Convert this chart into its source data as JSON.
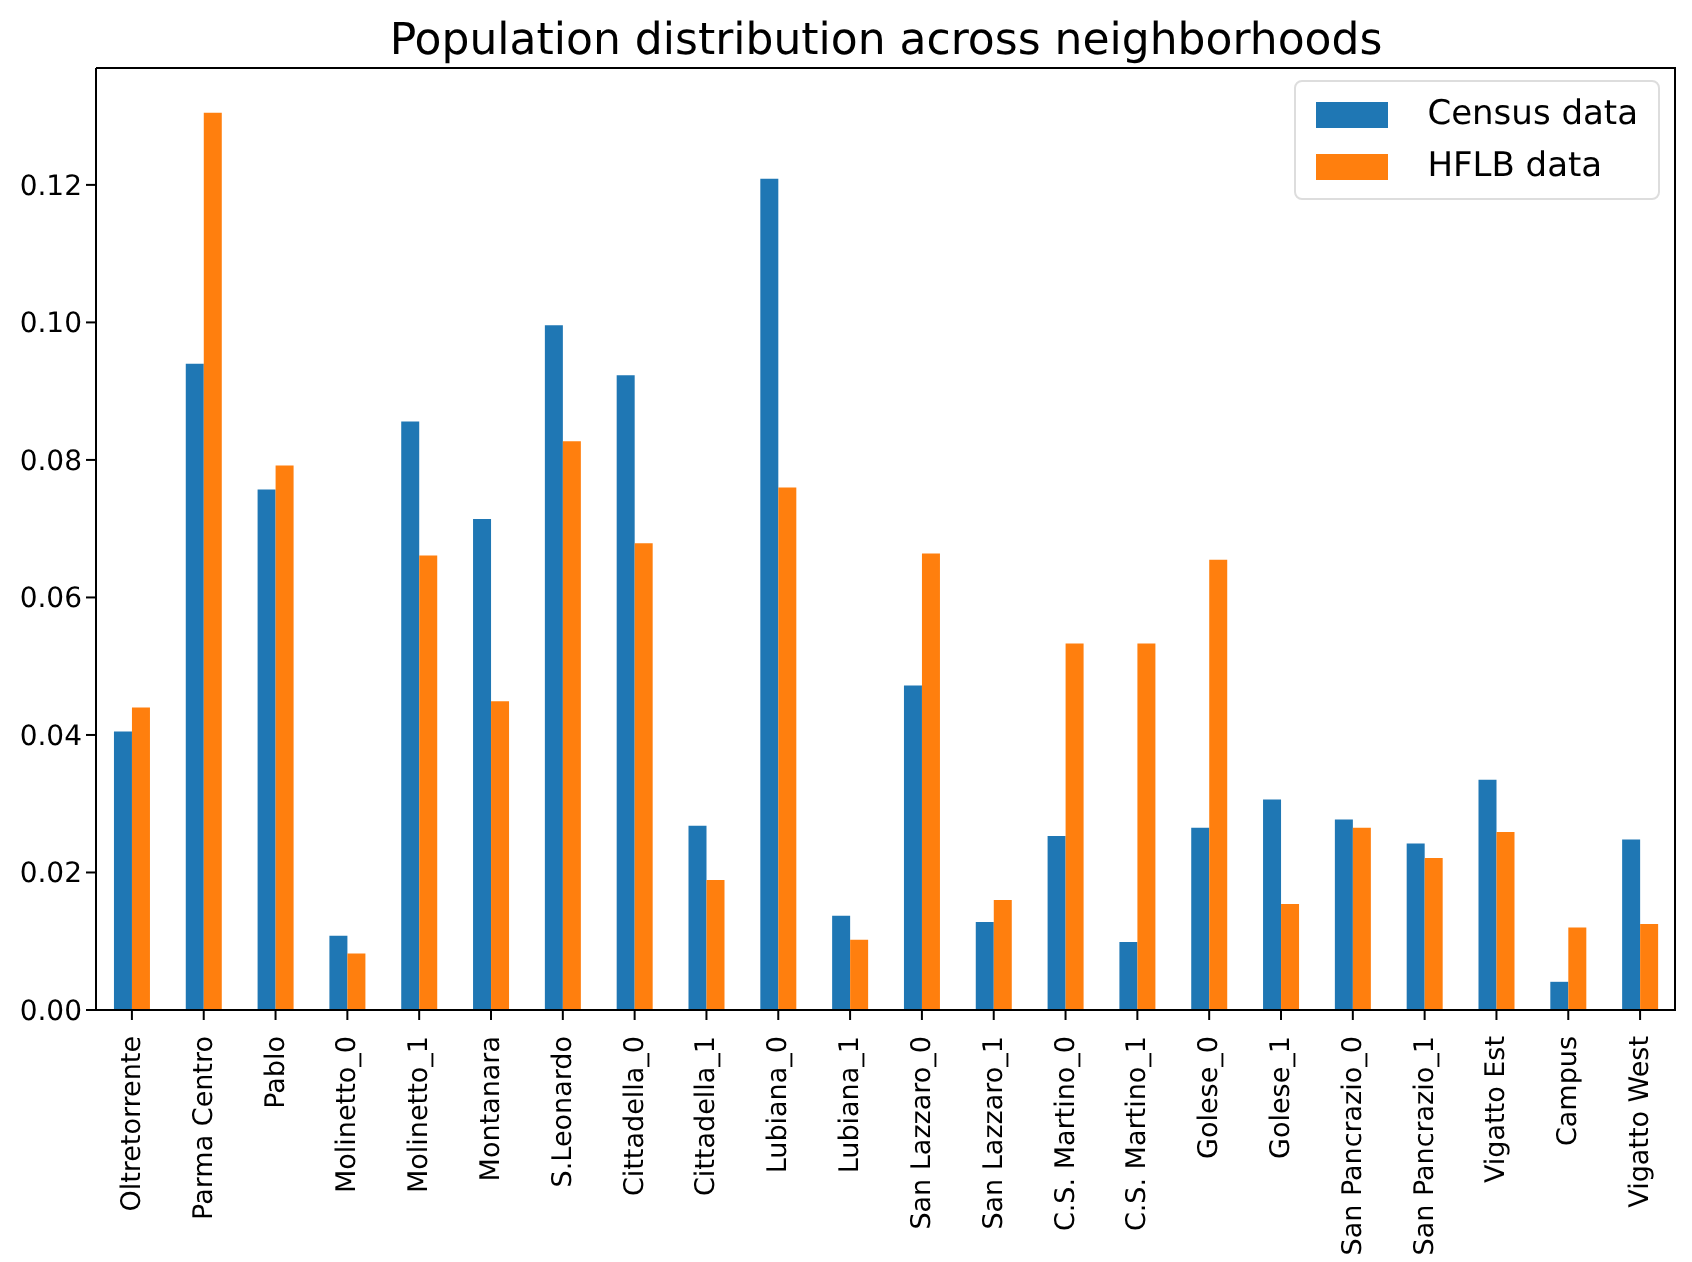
{
  "chart_data": {
    "type": "bar",
    "title": "Population distribution across neighborhoods",
    "categories": [
      "Oltretorrente",
      "Parma Centro",
      "Pablo",
      "Molinetto_0",
      "Molinetto_1",
      "Montanara",
      "S.Leonardo",
      "Cittadella_0",
      "Cittadella_1",
      "Lubiana_0",
      "Lubiana_1",
      "San Lazzaro_0",
      "San Lazzaro_1",
      "C.S. Martino_0",
      "C.S. Martino_1",
      "Golese_0",
      "Golese_1",
      "San Pancrazio_0",
      "San Pancrazio_1",
      "Vigatto Est",
      "Campus",
      "Vigatto West"
    ],
    "series": [
      {
        "name": "Census data",
        "color": "#1f77b4",
        "values": [
          0.0405,
          0.094,
          0.0757,
          0.0108,
          0.0856,
          0.0714,
          0.0996,
          0.0923,
          0.0268,
          0.1209,
          0.0137,
          0.0472,
          0.0128,
          0.0253,
          0.0099,
          0.0265,
          0.0306,
          0.0277,
          0.0242,
          0.0335,
          0.0041,
          0.0248
        ]
      },
      {
        "name": "HFLB data",
        "color": "#ff7f0e",
        "values": [
          0.044,
          0.1305,
          0.0792,
          0.0082,
          0.0661,
          0.0449,
          0.0827,
          0.0679,
          0.0189,
          0.076,
          0.0102,
          0.0664,
          0.016,
          0.0533,
          0.0533,
          0.0655,
          0.0154,
          0.0265,
          0.0221,
          0.0259,
          0.012,
          0.0125
        ]
      }
    ],
    "ylim": [
      0,
      0.137
    ],
    "yticks": [
      {
        "value": 0,
        "label": "0.00"
      },
      {
        "value": 0.02,
        "label": "0.02"
      },
      {
        "value": 0.04,
        "label": "0.04"
      },
      {
        "value": 0.06,
        "label": "0.06"
      },
      {
        "value": 0.08,
        "label": "0.08"
      },
      {
        "value": 0.1,
        "label": "0.10"
      },
      {
        "value": 0.12,
        "label": "0.12"
      }
    ],
    "grid": false,
    "legend": "top right"
  }
}
